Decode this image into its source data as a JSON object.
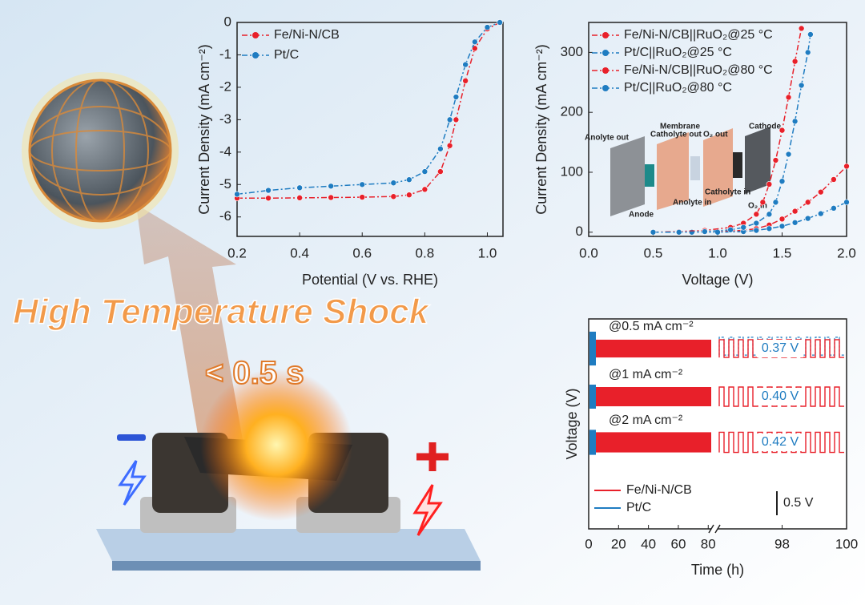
{
  "banner": {
    "title": "High Temperature Shock",
    "duration": "< 0.5 s"
  },
  "chart_data": [
    {
      "type": "line",
      "xlabel": "Potential (V vs. RHE)",
      "ylabel": "Current Density (mA cm⁻²)",
      "xlim": [
        0.2,
        1.05
      ],
      "xticks": [
        0.2,
        0.4,
        0.6,
        0.8,
        {
          "value": 1,
          "label": "1.0"
        }
      ],
      "ylim": [
        -6.6,
        0
      ],
      "yticks": [
        0,
        -1,
        -2,
        -3,
        -4,
        -5,
        -6
      ],
      "legend": "upper left",
      "series": [
        {
          "name": "Fe/Ni-N/CB",
          "color": "#e8202a",
          "x": [
            0.2,
            0.3,
            0.4,
            0.5,
            0.6,
            0.7,
            0.75,
            0.8,
            0.85,
            0.88,
            0.9,
            0.93,
            0.96,
            1.0,
            1.04
          ],
          "values": [
            -5.42,
            -5.42,
            -5.41,
            -5.4,
            -5.39,
            -5.37,
            -5.32,
            -5.15,
            -4.6,
            -3.8,
            -3.0,
            -1.8,
            -0.8,
            -0.2,
            0
          ]
        },
        {
          "name": "Pt/C",
          "color": "#1f7cc1",
          "x": [
            0.2,
            0.3,
            0.4,
            0.5,
            0.6,
            0.7,
            0.75,
            0.8,
            0.85,
            0.88,
            0.9,
            0.93,
            0.96,
            1.0,
            1.04
          ],
          "values": [
            -5.3,
            -5.18,
            -5.1,
            -5.05,
            -5.0,
            -4.95,
            -4.85,
            -4.6,
            -3.9,
            -3.0,
            -2.3,
            -1.3,
            -0.6,
            -0.15,
            0
          ]
        }
      ]
    },
    {
      "type": "line",
      "xlabel": "Voltage (V)",
      "ylabel": "Current Density (mA cm⁻²)",
      "xlim": [
        0,
        2
      ],
      "xticks": [
        {
          "value": 0,
          "label": "0.0"
        },
        0.5,
        {
          "value": 1,
          "label": "1.0"
        },
        1.5,
        {
          "value": 2,
          "label": "2.0"
        }
      ],
      "ylim": [
        -7,
        350
      ],
      "yticks": [
        0,
        100,
        200,
        300
      ],
      "legend": "upper left",
      "series": [
        {
          "name": "Fe/Ni-N/CB||RuO₂@25 °C",
          "color": "#e8202a",
          "x": [
            0.5,
            0.8,
            1.0,
            1.2,
            1.3,
            1.4,
            1.5,
            1.6,
            1.7,
            1.8,
            1.9,
            2.0
          ],
          "values": [
            0,
            0,
            1,
            3,
            6,
            12,
            22,
            35,
            50,
            67,
            88,
            110
          ]
        },
        {
          "name": "Pt/C||RuO₂@25 °C",
          "color": "#1f7cc1",
          "x": [
            0.5,
            0.8,
            1.0,
            1.2,
            1.3,
            1.4,
            1.5,
            1.6,
            1.7,
            1.8,
            1.9,
            2.0
          ],
          "values": [
            0,
            0,
            0,
            1,
            3,
            6,
            10,
            16,
            23,
            31,
            40,
            50
          ]
        },
        {
          "name": "Fe/Ni-N/CB||RuO₂@80 °C",
          "color": "#e8202a",
          "x": [
            0.5,
            0.7,
            0.9,
            1.1,
            1.2,
            1.3,
            1.35,
            1.4,
            1.45,
            1.5,
            1.55,
            1.6,
            1.65
          ],
          "values": [
            0,
            1,
            3,
            8,
            15,
            30,
            50,
            80,
            120,
            170,
            225,
            285,
            340
          ]
        },
        {
          "name": "Pt/C||RuO₂@80 °C",
          "color": "#1f7cc1",
          "x": [
            0.5,
            0.7,
            0.9,
            1.1,
            1.2,
            1.3,
            1.4,
            1.45,
            1.5,
            1.55,
            1.6,
            1.65,
            1.7,
            1.72
          ],
          "values": [
            0,
            0,
            1,
            4,
            8,
            15,
            30,
            50,
            85,
            130,
            185,
            245,
            300,
            330
          ]
        }
      ],
      "annotations": [
        "Anolyte out",
        "Catholyte out",
        "Membrane",
        "O₂ out",
        "Cathode",
        "Anode",
        "Anolyte in",
        "Catholyte in",
        "O₂ in"
      ]
    },
    {
      "type": "cycling",
      "xlabel": "Time (h)",
      "ylabel": "Voltage (V)",
      "xlim": [
        0,
        82
      ],
      "xticks": [
        0,
        20,
        40,
        60,
        80
      ],
      "xlim_break": [
        96,
        100
      ],
      "xticks_break": [
        98,
        100
      ],
      "series": [
        {
          "name": "Fe/Ni-N/CB",
          "color": "#e8202a"
        },
        {
          "name": "Pt/C",
          "color": "#1f7cc1"
        }
      ],
      "annotations": [
        "@0.5 mA cm⁻²",
        "@1 mA cm⁻²",
        "@2 mA cm⁻²"
      ],
      "voltage_gaps": [
        0.37,
        0.4,
        0.42
      ],
      "value_labels": [
        "0.37 V",
        "0.40 V",
        "0.42 V"
      ],
      "scale_bar": {
        "value": 0.5,
        "label": "0.5 V"
      }
    }
  ]
}
